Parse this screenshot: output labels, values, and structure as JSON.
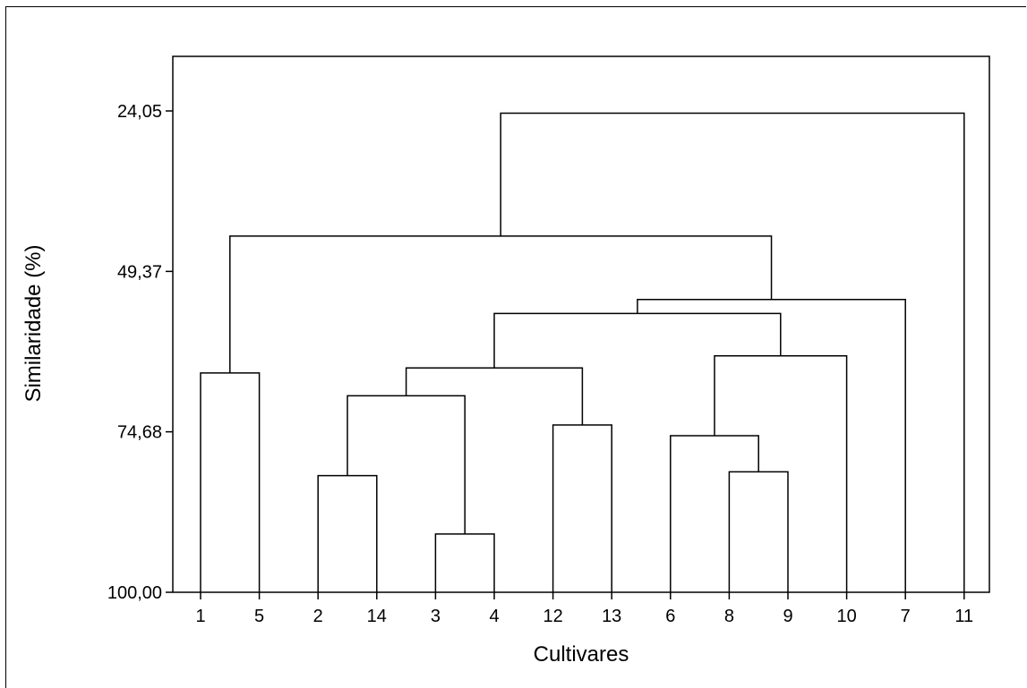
{
  "chart_data": {
    "type": "dendrogram",
    "xlabel": "Cultivares",
    "ylabel": "Similaridade (%)",
    "ylim": [
      24.05,
      100.0
    ],
    "y_reversed": true,
    "y_ticks": [
      {
        "value": 24.05,
        "label": "24,05"
      },
      {
        "value": 49.37,
        "label": "49,37"
      },
      {
        "value": 74.68,
        "label": "74,68"
      },
      {
        "value": 100.0,
        "label": "100,00"
      }
    ],
    "leaves": [
      "1",
      "5",
      "2",
      "14",
      "3",
      "4",
      "12",
      "13",
      "6",
      "8",
      "9",
      "10",
      "7",
      "11"
    ],
    "merges": [
      {
        "left": "L:3",
        "right": "L:4",
        "similarity": 90.8
      },
      {
        "left": "L:2",
        "right": "L:14",
        "similarity": 81.6
      },
      {
        "left": "L:8",
        "right": "L:9",
        "similarity": 81.0
      },
      {
        "left": "L:6",
        "right": "M:2",
        "similarity": 75.3
      },
      {
        "left": "L:12",
        "right": "L:13",
        "similarity": 73.6
      },
      {
        "left": "L:1",
        "right": "L:5",
        "similarity": 65.4
      },
      {
        "left": "M:1",
        "right": "M:0",
        "similarity": 69.0
      },
      {
        "left": "M:6",
        "right": "M:4",
        "similarity": 64.6
      },
      {
        "left": "M:3",
        "right": "L:10",
        "similarity": 62.7
      },
      {
        "left": "M:7",
        "right": "M:8",
        "similarity": 56.0
      },
      {
        "left": "M:9",
        "right": "L:7",
        "similarity": 53.8
      },
      {
        "left": "M:5",
        "right": "M:10",
        "similarity": 43.8
      },
      {
        "left": "M:11",
        "right": "L:11",
        "similarity": 24.4
      }
    ]
  }
}
